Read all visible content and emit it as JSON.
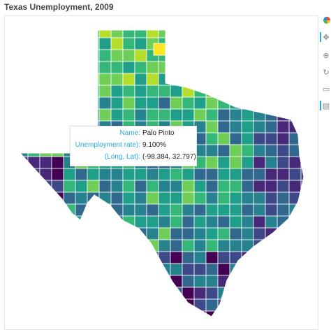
{
  "title": "Texas Unemployment, 2009",
  "tooltip": {
    "name_label": "Name:",
    "name_value": "Palo Pinto",
    "rate_label": "Unemployment rate):",
    "rate_value": "9.100%",
    "coord_label": "(Long, Lat):",
    "coord_value": "(-98.384, 32.797)"
  },
  "toolbar": {
    "tools": [
      "bokeh-logo-icon",
      "pan-icon",
      "wheel-zoom-icon",
      "reset-icon",
      "save-icon",
      "hover-icon"
    ]
  },
  "colors": {
    "palette_viridis": [
      "#440154",
      "#482878",
      "#3e4989",
      "#31688e",
      "#26828e",
      "#1f9e89",
      "#35b779",
      "#6ece58",
      "#b5de2b",
      "#fde725"
    ],
    "background": "#ffffff",
    "tooltip_label": "#26aae1"
  }
}
